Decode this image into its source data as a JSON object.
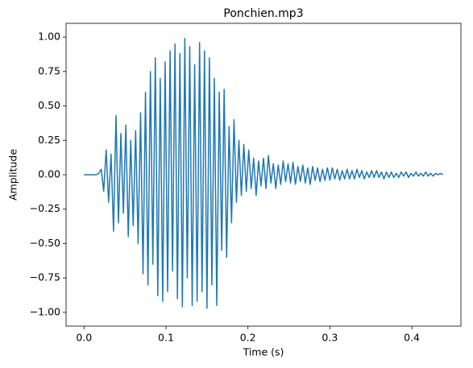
{
  "chart_data": {
    "type": "line",
    "title": "Ponchien.mp3",
    "x_label": "Time (s)",
    "y_label": "Amplitude",
    "x": [
      0,
      0.003,
      0.006,
      0.009,
      0.012,
      0.015,
      0.018,
      0.021,
      0.024,
      0.027,
      0.03,
      0.033,
      0.036,
      0.039,
      0.042,
      0.045,
      0.048,
      0.051,
      0.054,
      0.057,
      0.06,
      0.063,
      0.066,
      0.069,
      0.072,
      0.075,
      0.078,
      0.081,
      0.084,
      0.087,
      0.09,
      0.093,
      0.096,
      0.099,
      0.102,
      0.105,
      0.108,
      0.111,
      0.114,
      0.117,
      0.12,
      0.123,
      0.126,
      0.129,
      0.132,
      0.135,
      0.138,
      0.141,
      0.144,
      0.147,
      0.15,
      0.153,
      0.156,
      0.159,
      0.162,
      0.165,
      0.168,
      0.171,
      0.174,
      0.177,
      0.18,
      0.183,
      0.186,
      0.189,
      0.192,
      0.195,
      0.198,
      0.201,
      0.204,
      0.207,
      0.21,
      0.213,
      0.216,
      0.219,
      0.222,
      0.225,
      0.228,
      0.231,
      0.234,
      0.237,
      0.24,
      0.243,
      0.246,
      0.249,
      0.252,
      0.255,
      0.258,
      0.261,
      0.264,
      0.267,
      0.27,
      0.273,
      0.276,
      0.279,
      0.282,
      0.285,
      0.288,
      0.291,
      0.294,
      0.297,
      0.3,
      0.303,
      0.306,
      0.309,
      0.312,
      0.315,
      0.318,
      0.321,
      0.324,
      0.327,
      0.33,
      0.333,
      0.336,
      0.339,
      0.342,
      0.345,
      0.348,
      0.351,
      0.354,
      0.357,
      0.36,
      0.363,
      0.366,
      0.369,
      0.372,
      0.375,
      0.378,
      0.381,
      0.384,
      0.387,
      0.39,
      0.393,
      0.396,
      0.399,
      0.402,
      0.405,
      0.408,
      0.411,
      0.414,
      0.417,
      0.42,
      0.423,
      0.426,
      0.429,
      0.432,
      0.435,
      0.438
    ],
    "series": [
      {
        "color": "#1f77b4",
        "values": [
          0,
          0,
          0,
          0,
          0,
          0,
          0.01,
          0.04,
          -0.12,
          0.18,
          -0.2,
          0.15,
          -0.41,
          0.43,
          -0.35,
          0.3,
          -0.28,
          0.36,
          -0.45,
          0.25,
          -0.37,
          0.32,
          -0.5,
          0.45,
          -0.72,
          0.6,
          -0.8,
          0.75,
          -0.65,
          0.85,
          -0.88,
          0.7,
          -0.92,
          0.82,
          -0.85,
          0.9,
          -0.7,
          0.95,
          -0.9,
          0.88,
          -0.96,
          0.99,
          -0.75,
          0.93,
          -0.95,
          0.8,
          -0.92,
          0.96,
          -0.85,
          0.9,
          -0.97,
          0.85,
          -0.8,
          0.7,
          -0.95,
          0.6,
          -0.55,
          0.62,
          -0.6,
          0.35,
          -0.35,
          0.4,
          -0.2,
          0.25,
          -0.15,
          0.22,
          -0.12,
          0.18,
          -0.1,
          0.12,
          -0.15,
          0.1,
          -0.08,
          0.12,
          -0.1,
          0.14,
          -0.06,
          0.08,
          -0.1,
          0.07,
          -0.07,
          0.1,
          -0.05,
          0.08,
          -0.06,
          0.09,
          -0.07,
          0.06,
          -0.05,
          0.07,
          -0.06,
          0.05,
          -0.07,
          0.06,
          -0.04,
          0.05,
          -0.05,
          0.04,
          -0.04,
          0.05,
          -0.04,
          0.05,
          -0.03,
          0.04,
          -0.04,
          0.03,
          -0.03,
          0.04,
          -0.03,
          0.03,
          -0.03,
          0.04,
          -0.02,
          0.03,
          -0.03,
          0.02,
          -0.02,
          0.03,
          -0.02,
          0.03,
          -0.02,
          0.02,
          -0.03,
          0.02,
          -0.02,
          0.02,
          -0.02,
          0.01,
          -0.02,
          0.02,
          -0.01,
          0.02,
          -0.02,
          0.01,
          -0.01,
          0.02,
          -0.01,
          0.01,
          -0.01,
          0.02,
          -0.01,
          0.01,
          -0.01,
          0.01,
          0,
          0.01,
          0
        ]
      }
    ],
    "xlim": [
      -0.0219,
      0.4599
    ],
    "ylim": [
      -1.1,
      1.1
    ],
    "xticks": [
      {
        "value": 0,
        "label": "0.0"
      },
      0.1,
      0.2,
      0.3,
      0.4
    ],
    "yticks": [
      {
        "value": -1,
        "label": "−1.00"
      },
      {
        "value": -0.75,
        "label": "−0.75"
      },
      {
        "value": -0.5,
        "label": "−0.50"
      },
      {
        "value": -0.25,
        "label": "−0.25"
      },
      {
        "value": 0,
        "label": "0.00"
      },
      {
        "value": 0.25,
        "label": "0.25"
      },
      {
        "value": 0.5,
        "label": "0.50"
      },
      {
        "value": 0.75,
        "label": "0.75"
      },
      {
        "value": 1,
        "label": "1.00"
      }
    ],
    "grid": false
  }
}
